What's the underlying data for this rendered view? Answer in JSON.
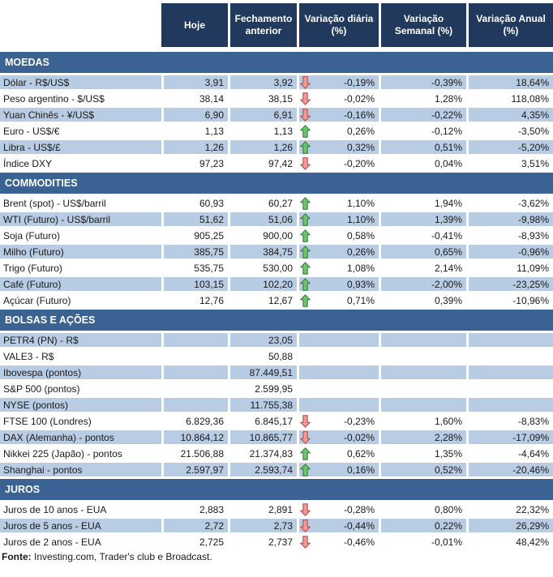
{
  "header": {
    "labels": [
      "Hoje",
      "Fechamento anterior",
      "Variação diária (%)",
      "Variação Semanal (%)",
      "Variação Anual (%)"
    ]
  },
  "sections": [
    {
      "title": "MOEDAS",
      "rows": [
        {
          "label": "Dólar - R$/US$",
          "hoje": "3,91",
          "fechamento": "3,92",
          "arrow": "down",
          "var_diaria": "-0,19%",
          "var_semanal": "-0,39%",
          "var_anual": "18,64%"
        },
        {
          "label": "Peso argentino - $/US$",
          "hoje": "38,14",
          "fechamento": "38,15",
          "arrow": "down",
          "var_diaria": "-0,02%",
          "var_semanal": "1,28%",
          "var_anual": "118,08%"
        },
        {
          "label": "Yuan Chinês - ¥/US$",
          "hoje": "6,90",
          "fechamento": "6,91",
          "arrow": "down",
          "var_diaria": "-0,16%",
          "var_semanal": "-0,22%",
          "var_anual": "4,35%"
        },
        {
          "label": "Euro - US$/€",
          "hoje": "1,13",
          "fechamento": "1,13",
          "arrow": "up",
          "var_diaria": "0,26%",
          "var_semanal": "-0,12%",
          "var_anual": "-3,50%"
        },
        {
          "label": "Libra - US$/£",
          "hoje": "1,26",
          "fechamento": "1,26",
          "arrow": "up",
          "var_diaria": "0,32%",
          "var_semanal": "0,51%",
          "var_anual": "-5,20%"
        },
        {
          "label": "Índice DXY",
          "hoje": "97,23",
          "fechamento": "97,42",
          "arrow": "down",
          "var_diaria": "-0,20%",
          "var_semanal": "0,04%",
          "var_anual": "3,51%"
        }
      ]
    },
    {
      "title": "COMMODITIES",
      "rows": [
        {
          "label": "Brent (spot) - US$/barril",
          "hoje": "60,93",
          "fechamento": "60,27",
          "arrow": "up",
          "var_diaria": "1,10%",
          "var_semanal": "1,94%",
          "var_anual": "-3,62%"
        },
        {
          "label": "WTI (Futuro) - US$/barril",
          "hoje": "51,62",
          "fechamento": "51,06",
          "arrow": "up",
          "var_diaria": "1,10%",
          "var_semanal": "1,39%",
          "var_anual": "-9,98%"
        },
        {
          "label": "Soja (Futuro)",
          "hoje": "905,25",
          "fechamento": "900,00",
          "arrow": "up",
          "var_diaria": "0,58%",
          "var_semanal": "-0,41%",
          "var_anual": "-8,93%"
        },
        {
          "label": "Milho (Futuro)",
          "hoje": "385,75",
          "fechamento": "384,75",
          "arrow": "up",
          "var_diaria": "0,26%",
          "var_semanal": "0,65%",
          "var_anual": "-0,96%"
        },
        {
          "label": "Trigo (Futuro)",
          "hoje": "535,75",
          "fechamento": "530,00",
          "arrow": "up",
          "var_diaria": "1,08%",
          "var_semanal": "2,14%",
          "var_anual": "11,09%"
        },
        {
          "label": "Café (Futuro)",
          "hoje": "103,15",
          "fechamento": "102,20",
          "arrow": "up",
          "var_diaria": "0,93%",
          "var_semanal": "-2,00%",
          "var_anual": "-23,25%"
        },
        {
          "label": "Açúcar (Futuro)",
          "hoje": "12,76",
          "fechamento": "12,67",
          "arrow": "up",
          "var_diaria": "0,71%",
          "var_semanal": "0,39%",
          "var_anual": "-10,96%"
        }
      ]
    },
    {
      "title": "BOLSAS E AÇÕES",
      "rows": [
        {
          "label": "PETR4 (PN) - R$",
          "hoje": "",
          "fechamento": "23,05",
          "arrow": null,
          "var_diaria": "",
          "var_semanal": "",
          "var_anual": ""
        },
        {
          "label": "VALE3 - R$",
          "hoje": "",
          "fechamento": "50,88",
          "arrow": null,
          "var_diaria": "",
          "var_semanal": "",
          "var_anual": ""
        },
        {
          "label": "Ibovespa (pontos)",
          "hoje": "",
          "fechamento": "87.449,51",
          "arrow": null,
          "var_diaria": "",
          "var_semanal": "",
          "var_anual": ""
        },
        {
          "label": "S&P 500 (pontos)",
          "hoje": "",
          "fechamento": "2.599,95",
          "arrow": null,
          "var_diaria": "",
          "var_semanal": "",
          "var_anual": ""
        },
        {
          "label": "NYSE (pontos)",
          "hoje": "",
          "fechamento": "11.755,38",
          "arrow": null,
          "var_diaria": "",
          "var_semanal": "",
          "var_anual": ""
        },
        {
          "label": "FTSE 100 (Londres)",
          "hoje": "6.829,36",
          "fechamento": "6.845,17",
          "arrow": "down",
          "var_diaria": "-0,23%",
          "var_semanal": "1,60%",
          "var_anual": "-8,83%"
        },
        {
          "label": "DAX (Alemanha) - pontos",
          "hoje": "10.864,12",
          "fechamento": "10.865,77",
          "arrow": "down",
          "var_diaria": "-0,02%",
          "var_semanal": "2,28%",
          "var_anual": "-17,09%"
        },
        {
          "label": "Nikkei 225 (Japão) - pontos",
          "hoje": "21.506,88",
          "fechamento": "21.374,83",
          "arrow": "up",
          "var_diaria": "0,62%",
          "var_semanal": "1,35%",
          "var_anual": "-4,64%"
        },
        {
          "label": "Shanghai - pontos",
          "hoje": "2.597,97",
          "fechamento": "2.593,74",
          "arrow": "up",
          "var_diaria": "0,16%",
          "var_semanal": "0,52%",
          "var_anual": "-20,46%"
        }
      ]
    },
    {
      "title": "JUROS",
      "rows": [
        {
          "label": "Juros de 10 anos - EUA",
          "hoje": "2,883",
          "fechamento": "2,891",
          "arrow": "down",
          "var_diaria": "-0,28%",
          "var_semanal": "0,80%",
          "var_anual": "22,32%"
        },
        {
          "label": "Juros de 5 anos - EUA",
          "hoje": "2,72",
          "fechamento": "2,73",
          "arrow": "down",
          "var_diaria": "-0,44%",
          "var_semanal": "0,22%",
          "var_anual": "26,29%"
        },
        {
          "label": "Juros de 2 anos - EUA",
          "hoje": "2,725",
          "fechamento": "2,737",
          "arrow": "down",
          "var_diaria": "-0,46%",
          "var_semanal": "-0,01%",
          "var_anual": "48,42%"
        }
      ]
    }
  ],
  "footer": {
    "source_label": "Fonte:",
    "source_text": " Investing.com, Trader's club e Broadcast."
  },
  "colors": {
    "header_bg": "#20395c",
    "section_bg": "#3a6292",
    "row_shaded_bg": "#b8cce4",
    "arrow_up_fill": "#6fc06f",
    "arrow_up_stroke": "#2e7d32",
    "arrow_down_fill": "#ec9b98",
    "arrow_down_stroke": "#b94442"
  }
}
